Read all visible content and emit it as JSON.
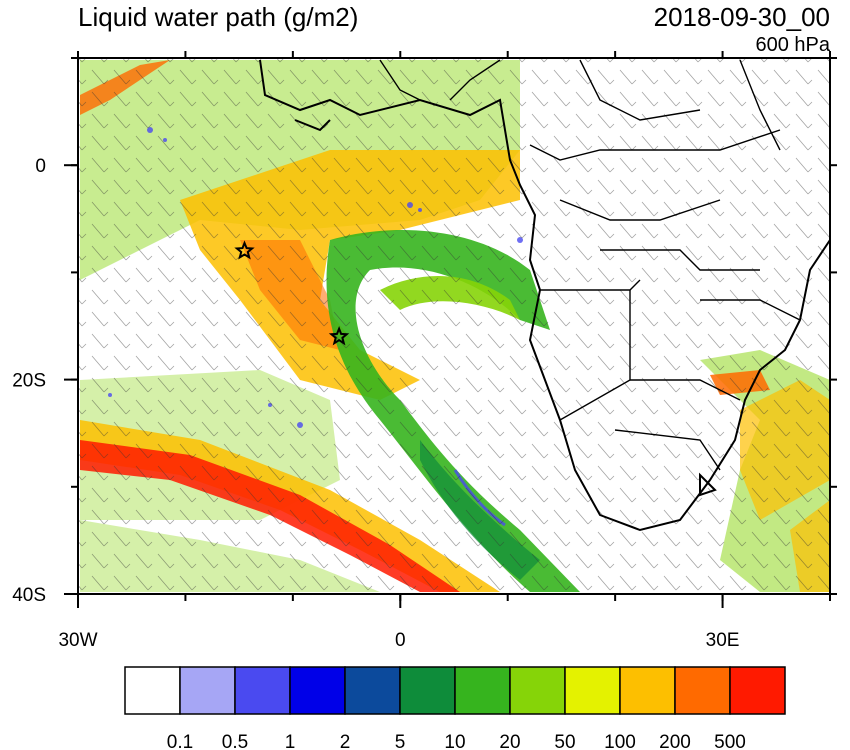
{
  "header": {
    "title": "Liquid water path (g/m2)",
    "datetime": "2018-09-30_00",
    "level": "600 hPa"
  },
  "map": {
    "lon_range": [
      -30,
      40
    ],
    "lat_range": [
      -40,
      10
    ],
    "x_ticks": [
      {
        "lon": -30,
        "label": "30W"
      },
      {
        "lon": 0,
        "label": "0"
      },
      {
        "lon": 30,
        "label": "30E"
      }
    ],
    "y_ticks": [
      {
        "lat": 0,
        "label": "0"
      },
      {
        "lat": -20,
        "label": "20S"
      },
      {
        "lat": -40,
        "label": "40S"
      }
    ],
    "markers": [
      {
        "name": "star-marker",
        "lon": -14.5,
        "lat": -8
      },
      {
        "name": "star-marker",
        "lon": -5.7,
        "lat": -16
      }
    ]
  },
  "colorbar": {
    "colors": [
      "#ffffff",
      "#a6a6f5",
      "#4a4af0",
      "#0000e8",
      "#0c4a9c",
      "#0e8c3a",
      "#36b41e",
      "#86d408",
      "#e4f200",
      "#fdbf00",
      "#ff6a00",
      "#ff1a00"
    ],
    "labels": [
      "0.1",
      "0.5",
      "1",
      "2",
      "5",
      "10",
      "20",
      "50",
      "100",
      "200",
      "500"
    ]
  },
  "colors": {
    "high": "#ff3300",
    "mid_orange": "#fdbf00",
    "green": "#36b41e",
    "light_green": "#86d408",
    "blue": "#4a4af0"
  }
}
